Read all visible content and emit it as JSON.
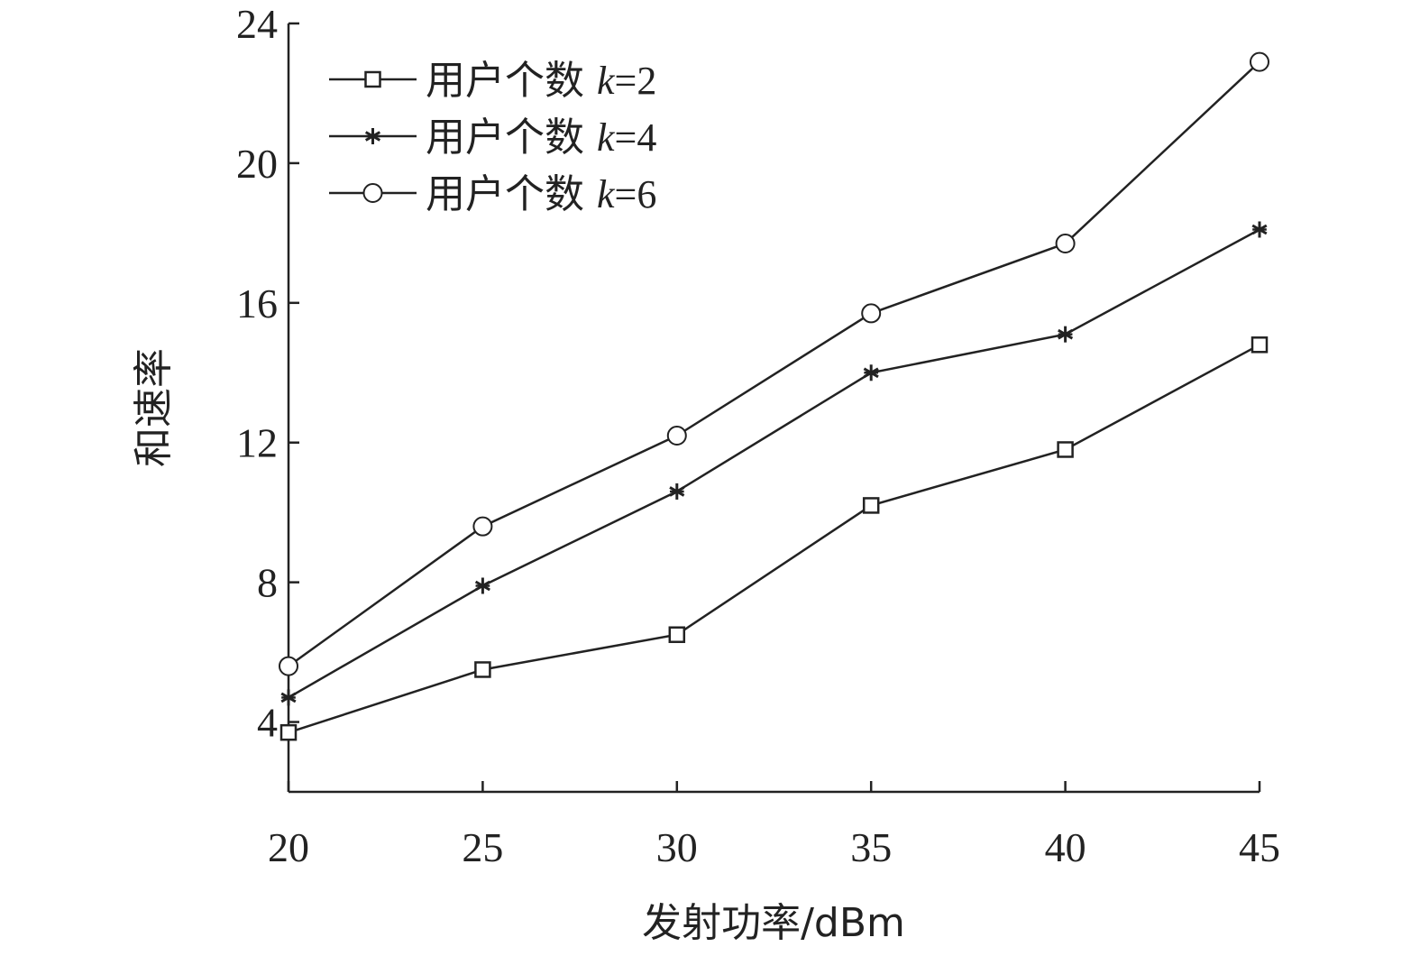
{
  "chart_data": {
    "type": "line",
    "xlabel": "发射功率/dBm",
    "ylabel": "和速率",
    "x": [
      20,
      25,
      30,
      35,
      40,
      45
    ],
    "xlim": [
      20,
      45
    ],
    "ylim": [
      2,
      24
    ],
    "xticks": [
      "20",
      "25",
      "30",
      "35",
      "40",
      "45"
    ],
    "yticks": [
      "4",
      "8",
      "12",
      "16",
      "20",
      "24"
    ],
    "ytick_values": [
      4,
      8,
      12,
      16,
      20,
      24
    ],
    "grid": false,
    "legend_position": "top-left",
    "series": [
      {
        "name_prefix": "用户个数 ",
        "name_var": "k",
        "name_suffix": "=2",
        "marker": "square",
        "values": [
          3.7,
          5.5,
          6.5,
          10.2,
          11.8,
          14.8
        ]
      },
      {
        "name_prefix": "用户个数 ",
        "name_var": "k",
        "name_suffix": "=4",
        "marker": "star",
        "values": [
          4.7,
          7.9,
          10.6,
          14.0,
          15.1,
          18.1
        ]
      },
      {
        "name_prefix": "用户个数 ",
        "name_var": "k",
        "name_suffix": "=6",
        "marker": "circle",
        "values": [
          5.6,
          9.6,
          12.2,
          15.7,
          17.7,
          22.9
        ]
      }
    ]
  }
}
